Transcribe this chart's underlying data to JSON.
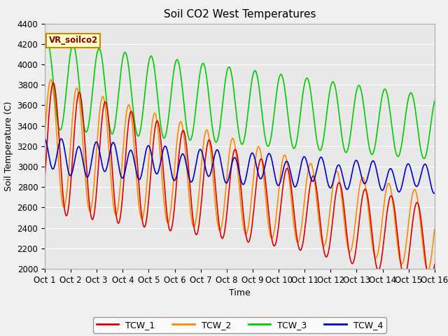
{
  "title": "Soil CO2 West Temperatures",
  "xlabel": "Time",
  "ylabel": "Soil Temperature (C)",
  "ylim": [
    2000,
    4400
  ],
  "xlim": [
    0,
    15
  ],
  "annotation": "VR_soilco2",
  "xtick_labels": [
    "Oct 1",
    "Oct 2",
    "Oct 3",
    "Oct 4",
    "Oct 5",
    "Oct 6",
    "Oct 7",
    "Oct 8",
    "Oct 9",
    "Oct 10",
    "Oct 11",
    "Oct 12",
    "Oct 13",
    "Oct 14",
    "Oct 15",
    "Oct 16"
  ],
  "series": {
    "TCW_1": {
      "color": "#dd0000",
      "linewidth": 1.2
    },
    "TCW_2": {
      "color": "#ff8800",
      "linewidth": 1.2
    },
    "TCW_3": {
      "color": "#00cc00",
      "linewidth": 1.2
    },
    "TCW_4": {
      "color": "#0000cc",
      "linewidth": 1.2
    }
  },
  "fig_bg": "#f0f0f0",
  "plot_bg": "#e8e8e8",
  "title_fontsize": 11,
  "axis_label_fontsize": 9,
  "tick_fontsize": 8.5
}
